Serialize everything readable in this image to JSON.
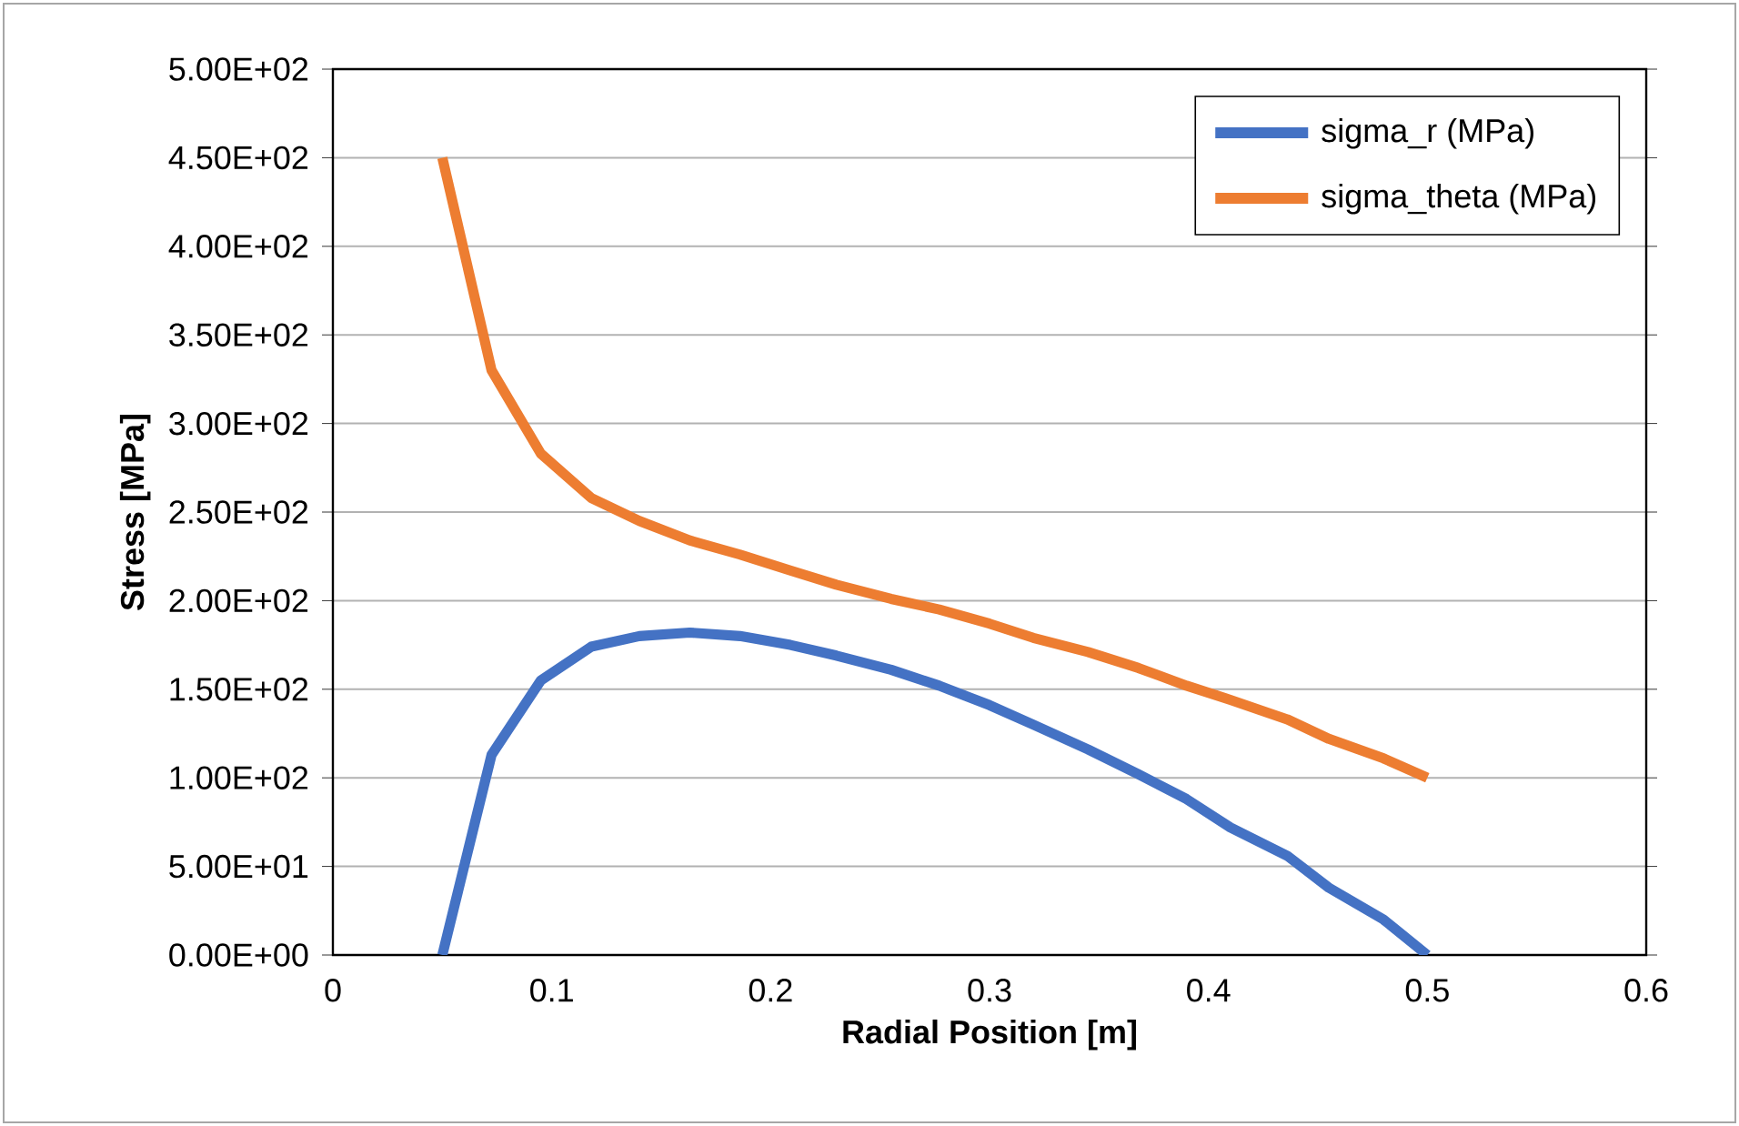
{
  "chart_data": {
    "type": "line",
    "xlabel": "Radial Position [m]",
    "ylabel": "Stress [MPa]",
    "x": [
      0.05,
      0.0725,
      0.095,
      0.118,
      0.14,
      0.163,
      0.186,
      0.209,
      0.23,
      0.255,
      0.277,
      0.3,
      0.32,
      0.345,
      0.368,
      0.39,
      0.41,
      0.436,
      0.455,
      0.48,
      0.5
    ],
    "series": [
      {
        "name": "sigma_r (MPa)",
        "color": "#4472c4",
        "values": [
          0,
          113,
          155,
          174,
          180,
          182,
          180,
          175,
          169,
          161,
          152,
          141,
          130,
          116,
          102,
          88,
          72,
          56,
          38,
          20,
          0
        ]
      },
      {
        "name": "sigma_theta (MPa)",
        "color": "#ed7d31",
        "values": [
          450,
          330,
          283,
          258,
          245,
          234,
          226,
          217,
          209,
          201,
          195,
          187,
          179,
          171,
          162,
          152,
          144,
          133,
          122,
          111,
          100
        ]
      }
    ],
    "xlim": [
      0,
      0.6
    ],
    "xticks": [
      0,
      0.1,
      0.2,
      0.3,
      0.4,
      0.5,
      0.6
    ],
    "ylim": [
      0,
      500
    ],
    "yticks": [
      {
        "value": 0,
        "label": "0.00E+00"
      },
      {
        "value": 50,
        "label": "5.00E+01"
      },
      {
        "value": 100,
        "label": "1.00E+02"
      },
      {
        "value": 150,
        "label": "1.50E+02"
      },
      {
        "value": 200,
        "label": "2.00E+02"
      },
      {
        "value": 250,
        "label": "2.50E+02"
      },
      {
        "value": 300,
        "label": "3.00E+02"
      },
      {
        "value": 350,
        "label": "3.50E+02"
      },
      {
        "value": 400,
        "label": "4.00E+02"
      },
      {
        "value": 450,
        "label": "4.50E+02"
      },
      {
        "value": 500,
        "label": "5.00E+02"
      }
    ],
    "grid": "y",
    "legend": "top right",
    "marker": "none",
    "line_style": "solid"
  }
}
